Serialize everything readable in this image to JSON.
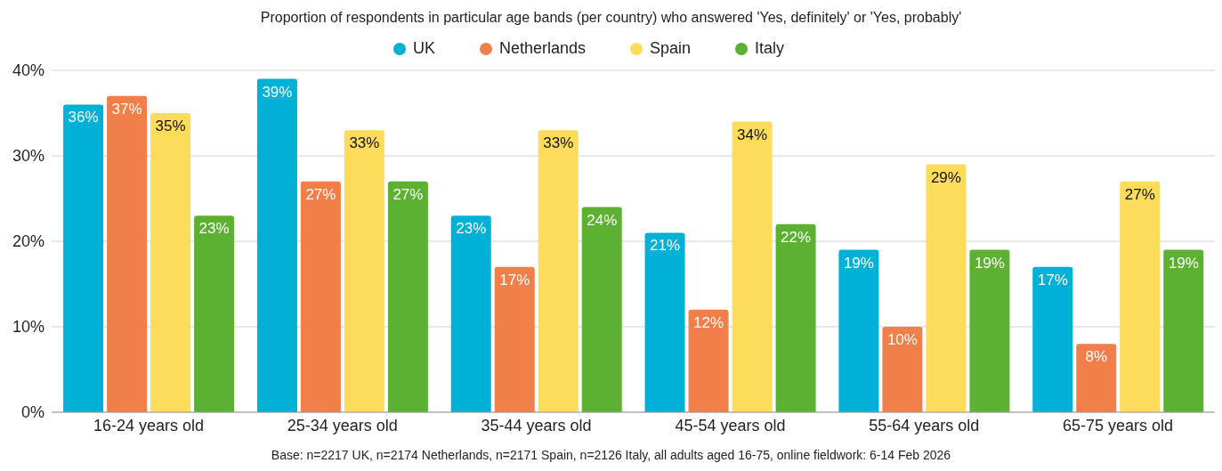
{
  "chart_data": {
    "type": "bar",
    "title": "Proportion of respondents in particular age bands (per country) who answered 'Yes, definitely' or 'Yes, probably'",
    "categories": [
      "16-24 years old",
      "25-34 years old",
      "35-44 years old",
      "45-54 years old",
      "55-64 years old",
      "65-75 years old"
    ],
    "series": [
      {
        "name": "UK",
        "color": "#00b0d6",
        "values": [
          36,
          39,
          23,
          21,
          19,
          17
        ],
        "value_labels": [
          "36%",
          "39%",
          "23%",
          "21%",
          "19%",
          "17%"
        ]
      },
      {
        "name": "Netherlands",
        "color": "#f07f4a",
        "values": [
          37,
          27,
          17,
          12,
          10,
          8
        ],
        "value_labels": [
          "37%",
          "27%",
          "17%",
          "12%",
          "10%",
          "8%"
        ]
      },
      {
        "name": "Spain",
        "color": "#fddc5c",
        "values": [
          35,
          33,
          33,
          34,
          29,
          27
        ],
        "value_labels": [
          "35%",
          "33%",
          "33%",
          "34%",
          "29%",
          "27%"
        ]
      },
      {
        "name": "Italy",
        "color": "#5db132",
        "values": [
          23,
          27,
          24,
          22,
          19,
          19
        ],
        "value_labels": [
          "23%",
          "27%",
          "24%",
          "22%",
          "19%",
          "19%"
        ]
      }
    ],
    "ylim": [
      0,
      40
    ],
    "yticks": [
      {
        "value": 0,
        "label": "0%"
      },
      {
        "value": 10,
        "label": "10%"
      },
      {
        "value": 20,
        "label": "20%"
      },
      {
        "value": 30,
        "label": "30%"
      },
      {
        "value": 40,
        "label": "40%"
      }
    ],
    "grid": "y",
    "legend": "top",
    "annotations": [
      "Base: n=2217 UK, n=2174 Netherlands, n=2171 Spain, n=2126 Italy, all adults aged 16-75, online fieldwork: 6-14 Feb 2026"
    ]
  }
}
